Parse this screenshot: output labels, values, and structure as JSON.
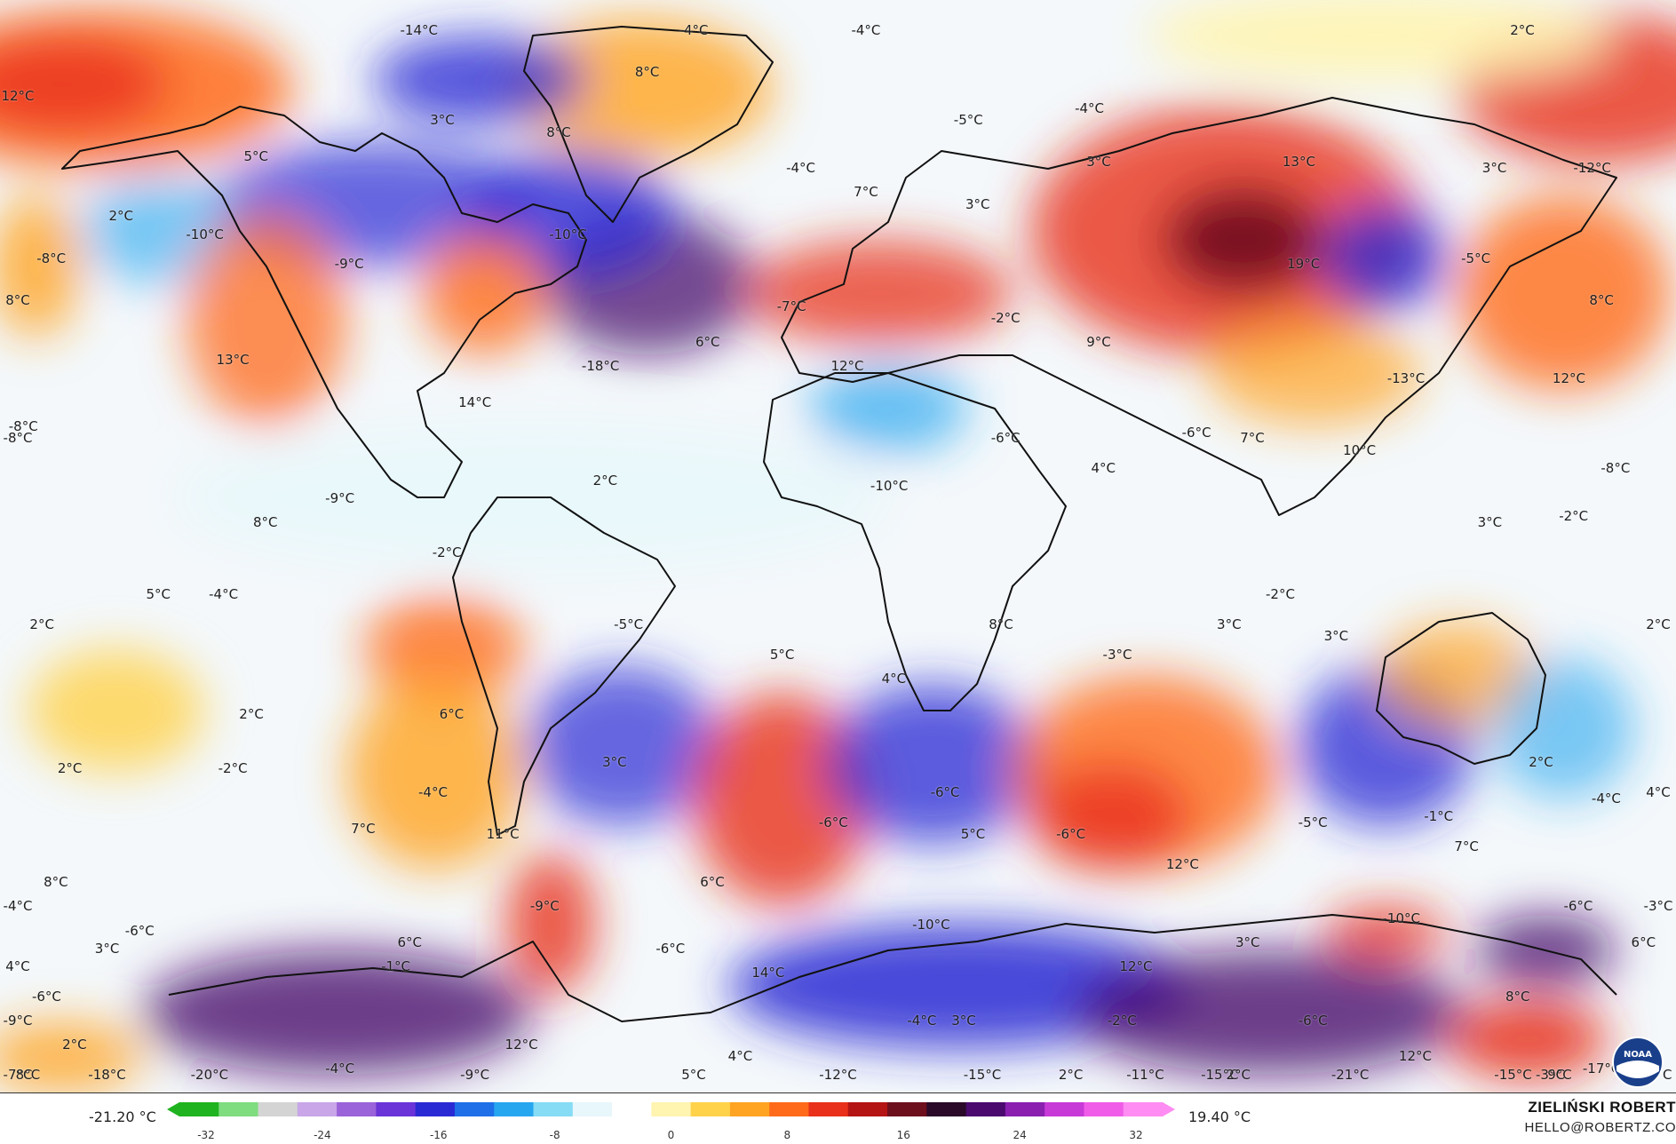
{
  "map": {
    "labels": [
      {
        "text": "-14°C",
        "lon": -80,
        "lat": 85
      },
      {
        "text": "-4°C",
        "lon": -21,
        "lat": 85
      },
      {
        "text": "-4°C",
        "lon": 16,
        "lat": 85
      },
      {
        "text": "2°C",
        "lon": 157,
        "lat": 85
      },
      {
        "text": "12°C",
        "lon": -174,
        "lat": 74
      },
      {
        "text": "8°C",
        "lon": -31,
        "lat": 78
      },
      {
        "text": "3°C",
        "lon": -75,
        "lat": 70
      },
      {
        "text": "8°C",
        "lon": -50,
        "lat": 68
      },
      {
        "text": "-5°C",
        "lon": 38,
        "lat": 70
      },
      {
        "text": "-4°C",
        "lon": 64,
        "lat": 72
      },
      {
        "text": "5°C",
        "lon": -115,
        "lat": 64
      },
      {
        "text": "-4°C",
        "lon": 2,
        "lat": 62
      },
      {
        "text": "3°C",
        "lon": 66,
        "lat": 63
      },
      {
        "text": "13°C",
        "lon": 109,
        "lat": 63
      },
      {
        "text": "3°C",
        "lon": 151,
        "lat": 62
      },
      {
        "text": "-12°C",
        "lon": 172,
        "lat": 62
      },
      {
        "text": "7°C",
        "lon": 16,
        "lat": 58
      },
      {
        "text": "3°C",
        "lon": 40,
        "lat": 56
      },
      {
        "text": "2°C",
        "lon": -144,
        "lat": 54
      },
      {
        "text": "-10°C",
        "lon": -126,
        "lat": 51
      },
      {
        "text": "-10°C",
        "lon": -48,
        "lat": 51
      },
      {
        "text": "-8°C",
        "lon": -159,
        "lat": 47
      },
      {
        "text": "-9°C",
        "lon": -95,
        "lat": 46
      },
      {
        "text": "19°C",
        "lon": 110,
        "lat": 46
      },
      {
        "text": "-5°C",
        "lon": 147,
        "lat": 47
      },
      {
        "text": "8°C",
        "lon": -177,
        "lat": 40
      },
      {
        "text": "-7°C",
        "lon": 0,
        "lat": 39
      },
      {
        "text": "-2°C",
        "lon": 46,
        "lat": 37
      },
      {
        "text": "8°C",
        "lon": 174,
        "lat": 40
      },
      {
        "text": "6°C",
        "lon": -18,
        "lat": 33
      },
      {
        "text": "9°C",
        "lon": 66,
        "lat": 33
      },
      {
        "text": "13°C",
        "lon": -120,
        "lat": 30
      },
      {
        "text": "-18°C",
        "lon": -41,
        "lat": 29
      },
      {
        "text": "12°C",
        "lon": 12,
        "lat": 29
      },
      {
        "text": "-13°C",
        "lon": 132,
        "lat": 27
      },
      {
        "text": "12°C",
        "lon": 167,
        "lat": 27
      },
      {
        "text": "14°C",
        "lon": -68,
        "lat": 23
      },
      {
        "text": "-8°C",
        "lon": -165,
        "lat": 19
      },
      {
        "text": "-8°C",
        "lon": -177,
        "lat": 17
      },
      {
        "text": "-6°C",
        "lon": 46,
        "lat": 17
      },
      {
        "text": "-6°C",
        "lon": 87,
        "lat": 18
      },
      {
        "text": "7°C",
        "lon": 99,
        "lat": 17
      },
      {
        "text": "10°C",
        "lon": 122,
        "lat": 15
      },
      {
        "text": "-8°C",
        "lon": 177,
        "lat": 12
      },
      {
        "text": "4°C",
        "lon": 67,
        "lat": 12
      },
      {
        "text": "2°C",
        "lon": -40,
        "lat": 10
      },
      {
        "text": "-9°C",
        "lon": -97,
        "lat": 7
      },
      {
        "text": "-10°C",
        "lon": 21,
        "lat": 9
      },
      {
        "text": "8°C",
        "lon": -113,
        "lat": 3
      },
      {
        "text": "-2°C",
        "lon": -74,
        "lat": -2
      },
      {
        "text": "3°C",
        "lon": 150,
        "lat": 3
      },
      {
        "text": "-2°C",
        "lon": 168,
        "lat": 4
      },
      {
        "text": "5°C",
        "lon": -136,
        "lat": -9
      },
      {
        "text": "-4°C",
        "lon": -122,
        "lat": -9
      },
      {
        "text": "-2°C",
        "lon": 105,
        "lat": -9
      },
      {
        "text": "2°C",
        "lon": -161,
        "lat": -14
      },
      {
        "text": "-5°C",
        "lon": -35,
        "lat": -14
      },
      {
        "text": "3°C",
        "lon": 94,
        "lat": -14
      },
      {
        "text": "8°C",
        "lon": 45,
        "lat": -14
      },
      {
        "text": "2°C",
        "lon": 190,
        "lat": -14
      },
      {
        "text": "3°C",
        "lon": 117,
        "lat": -16
      },
      {
        "text": "5°C",
        "lon": -2,
        "lat": -19
      },
      {
        "text": "-3°C",
        "lon": 70,
        "lat": -19
      },
      {
        "text": "4°C",
        "lon": 22,
        "lat": -23
      },
      {
        "text": "2°C",
        "lon": -116,
        "lat": -29
      },
      {
        "text": "6°C",
        "lon": -73,
        "lat": -29
      },
      {
        "text": "2°C",
        "lon": -155,
        "lat": -38
      },
      {
        "text": "-2°C",
        "lon": -120,
        "lat": -38
      },
      {
        "text": "3°C",
        "lon": -38,
        "lat": -37
      },
      {
        "text": "2°C",
        "lon": 161,
        "lat": -37
      },
      {
        "text": "-4°C",
        "lon": -77,
        "lat": -42
      },
      {
        "text": "4°C",
        "lon": 188,
        "lat": -42
      },
      {
        "text": "-4°C",
        "lon": 175,
        "lat": -43
      },
      {
        "text": "-6°C",
        "lon": 33,
        "lat": -42
      },
      {
        "text": "-1°C",
        "lon": 139,
        "lat": -46
      },
      {
        "text": "-6°C",
        "lon": 9,
        "lat": -47
      },
      {
        "text": "-5°C",
        "lon": 112,
        "lat": -47
      },
      {
        "text": "7°C",
        "lon": -92,
        "lat": -48
      },
      {
        "text": "11°C",
        "lon": -62,
        "lat": -49
      },
      {
        "text": "5°C",
        "lon": 39,
        "lat": -49
      },
      {
        "text": "-6°C",
        "lon": 60,
        "lat": -49
      },
      {
        "text": "7°C",
        "lon": 145,
        "lat": -51
      },
      {
        "text": "12°C",
        "lon": 84,
        "lat": -54
      },
      {
        "text": "8°C",
        "lon": -158,
        "lat": -57
      },
      {
        "text": "6°C",
        "lon": -17,
        "lat": -57
      },
      {
        "text": "-4°C",
        "lon": -168,
        "lat": -61
      },
      {
        "text": "-9°C",
        "lon": -53,
        "lat": -61
      },
      {
        "text": "-6°C",
        "lon": 169,
        "lat": -61
      },
      {
        "text": "-3°C",
        "lon": 190,
        "lat": -61
      },
      {
        "text": "-6°C",
        "lon": -140,
        "lat": -65
      },
      {
        "text": "-10°C",
        "lon": 30,
        "lat": -64
      },
      {
        "text": "-10°C",
        "lon": 131,
        "lat": -63
      },
      {
        "text": "3°C",
        "lon": -147,
        "lat": -68
      },
      {
        "text": "6°C",
        "lon": -82,
        "lat": -67
      },
      {
        "text": "-6°C",
        "lon": -26,
        "lat": -68
      },
      {
        "text": "3°C",
        "lon": 98,
        "lat": -67
      },
      {
        "text": "6°C",
        "lon": 183,
        "lat": -67
      },
      {
        "text": "4°C",
        "lon": -178,
        "lat": -71
      },
      {
        "text": "-1°C",
        "lon": -85,
        "lat": -71
      },
      {
        "text": "14°C",
        "lon": -5,
        "lat": -72
      },
      {
        "text": "12°C",
        "lon": 74,
        "lat": -71
      },
      {
        "text": "-6°C",
        "lon": -160,
        "lat": -76
      },
      {
        "text": "8°C",
        "lon": 156,
        "lat": -76
      },
      {
        "text": "-9°C",
        "lon": -173,
        "lat": -80
      },
      {
        "text": "-4°C",
        "lon": 28,
        "lat": -80
      },
      {
        "text": "3°C",
        "lon": 37,
        "lat": -80
      },
      {
        "text": "-2°C",
        "lon": 71,
        "lat": -80
      },
      {
        "text": "-6°C",
        "lon": 112,
        "lat": -80
      },
      {
        "text": "2°C",
        "lon": -154,
        "lat": -84
      },
      {
        "text": "12°C",
        "lon": -58,
        "lat": -84
      },
      {
        "text": "4°C",
        "lon": -11,
        "lat": -86
      },
      {
        "text": "12°C",
        "lon": 134,
        "lat": -86
      },
      {
        "text": "-4°C",
        "lon": -97,
        "lat": -88
      },
      {
        "text": "-17°C",
        "lon": 174,
        "lat": -88
      },
      {
        "text": "2°C",
        "lon": 60,
        "lat": -89
      },
      {
        "text": "-15°C",
        "lon": 41,
        "lat": -89
      },
      {
        "text": "-15°C",
        "lon": 155,
        "lat": -89
      },
      {
        "text": "-6°C",
        "lon": 186,
        "lat": -89
      },
      {
        "text": "-9°C",
        "lon": -68,
        "lat": -89
      },
      {
        "text": "-18°C",
        "lon": -147,
        "lat": -89
      },
      {
        "text": "-12°C",
        "lon": 10,
        "lat": -89
      },
      {
        "text": "-11°C",
        "lon": 76,
        "lat": -89
      },
      {
        "text": "-21°C",
        "lon": 120,
        "lat": -89
      },
      {
        "text": "-20°C",
        "lon": -125,
        "lat": -89
      },
      {
        "text": "-15°C",
        "lon": 92,
        "lat": -89
      },
      {
        "text": "9°C",
        "lon": 165,
        "lat": -89
      },
      {
        "text": "8°C",
        "lon": -164,
        "lat": -89
      },
      {
        "text": "-7°C",
        "lon": -181,
        "lat": -89
      },
      {
        "text": "5°C",
        "lon": -21,
        "lat": -89
      },
      {
        "text": "2°C",
        "lon": 96,
        "lat": -89
      },
      {
        "text": "-3°C",
        "lon": 163,
        "lat": -89
      }
    ]
  },
  "legend": {
    "min_value": "-21.20 °C",
    "max_value": "19.40 °C",
    "ticks": [
      "-32",
      "-24",
      "-16",
      "-8",
      "0",
      "8",
      "16",
      "24",
      "32"
    ],
    "tick_values": [
      -32,
      -24,
      -16,
      -8,
      0,
      8,
      16,
      24,
      32
    ],
    "range": [
      -32,
      32
    ],
    "colors": [
      "#1fb31f",
      "#7fdc7f",
      "#d4d4d4",
      "#c8a6e8",
      "#9a63d9",
      "#6a34d8",
      "#2a2ad4",
      "#1f6fe8",
      "#27a6f0",
      "#86dcf5",
      "#e8f7fb",
      "#ffffff",
      "#fff4b0",
      "#ffd24a",
      "#ffa422",
      "#ff6a1a",
      "#e8301a",
      "#b41414",
      "#6e0f1e",
      "#2a0a28",
      "#4a0a6e",
      "#8a1fb0",
      "#c83ad8",
      "#f05ce8",
      "#ff8cf2"
    ]
  },
  "credit": {
    "name": "ZIELIŃSKI ROBERT",
    "email": "HELLO@ROBERTZ.CO"
  },
  "logo": {
    "icon": "noaa-logo-icon",
    "text": "NOAA"
  },
  "colors": {
    "ocean": "#f4f8fb",
    "outline": "#111111"
  }
}
